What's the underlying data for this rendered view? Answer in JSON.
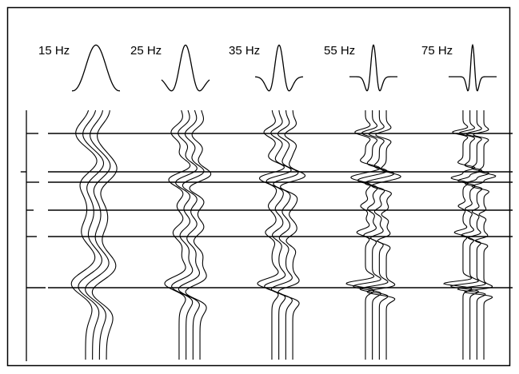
{
  "figure": {
    "description_type": "wedge-model seismic synthetic comparison",
    "line_color": "#000000",
    "background_color": "#ffffff",
    "panels": [
      {
        "label": "15 Hz",
        "frequency_hz": 15
      },
      {
        "label": "25 Hz",
        "frequency_hz": 25
      },
      {
        "label": "35 Hz",
        "frequency_hz": 35
      },
      {
        "label": "55 Hz",
        "frequency_hz": 55
      },
      {
        "label": "75 Hz",
        "frequency_hz": 75
      }
    ],
    "traces_per_panel": 4,
    "reflectors": [
      {
        "name": "reflector-1",
        "polarity": "negative",
        "strength": 0.55
      },
      {
        "name": "reflector-2",
        "polarity": "positive",
        "strength": 0.6
      },
      {
        "name": "reflector-3",
        "polarity": "negative",
        "strength": 0.6
      },
      {
        "name": "reflector-4",
        "polarity": "negative",
        "strength": 0.25
      },
      {
        "name": "reflector-5",
        "polarity": "negative",
        "strength": 0.45
      },
      {
        "name": "reflector-6",
        "polarity": "negative",
        "strength": 1.0
      }
    ]
  }
}
